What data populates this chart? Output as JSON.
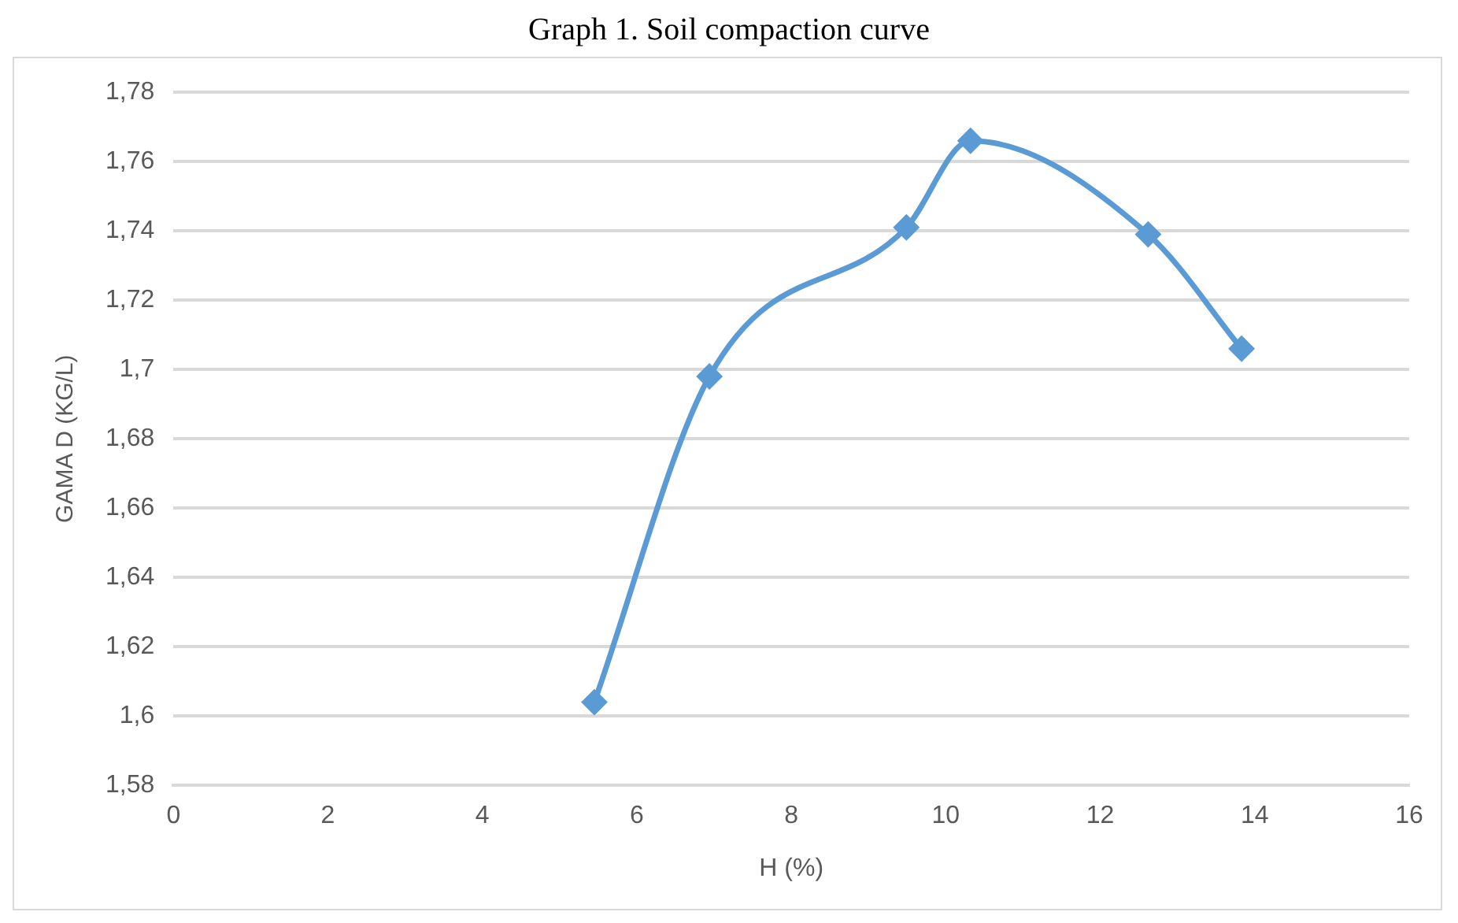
{
  "chart_data": {
    "type": "line",
    "title": "Graph 1. Soil compaction curve",
    "xlabel": "H (%)",
    "ylabel": "GAMA D (KG/L)",
    "x": [
      5.45,
      6.94,
      9.49,
      10.32,
      12.62,
      13.83
    ],
    "series": [
      {
        "color": "#5b9bd5",
        "values": [
          1.604,
          1.698,
          1.741,
          1.766,
          1.739,
          1.706
        ]
      }
    ],
    "xlim": [
      0,
      16
    ],
    "xticks": [
      0,
      2,
      4,
      6,
      8,
      10,
      12,
      14,
      16
    ],
    "ylim": [
      1.58,
      1.78
    ],
    "yticks": [
      {
        "value": 1.58,
        "label": "1,58"
      },
      {
        "value": 1.6,
        "label": "1,6"
      },
      {
        "value": 1.62,
        "label": "1,62"
      },
      {
        "value": 1.64,
        "label": "1,64"
      },
      {
        "value": 1.66,
        "label": "1,66"
      },
      {
        "value": 1.68,
        "label": "1,68"
      },
      {
        "value": 1.7,
        "label": "1,7"
      },
      {
        "value": 1.72,
        "label": "1,72"
      },
      {
        "value": 1.74,
        "label": "1,74"
      },
      {
        "value": 1.76,
        "label": "1,76"
      },
      {
        "value": 1.78,
        "label": "1,78"
      }
    ],
    "grid": "y",
    "marker": "diamond",
    "line_style": "solid",
    "legend": false
  }
}
